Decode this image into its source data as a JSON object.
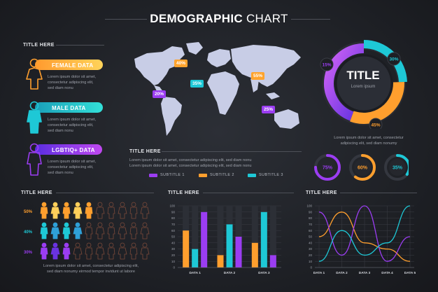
{
  "header": {
    "title_bold": "DEMOGRAPHIC",
    "title_light": " CHART"
  },
  "colors": {
    "orange": "#ff9f2e",
    "teal": "#1ec8d6",
    "purple": "#9b3df2",
    "background": "#1f2126"
  },
  "people_panel": {
    "title": "TITLE HERE",
    "rows": [
      {
        "label": "FEMALE DATA",
        "text": [
          "Lorem ipsum dolor sit amet,",
          "consectetur adipiscing elit,",
          "sed diam nonu"
        ],
        "icon": "female-person-icon"
      },
      {
        "label": "MALE DATA",
        "text": [
          "Lorem ipsum dolor sit amet,",
          "consectetur adipiscing elit,",
          "sed diam nonu"
        ],
        "icon": "male-person-icon"
      },
      {
        "label": "LGBTIQ+ DATA",
        "text": [
          "Lorem ipsum dolor sit amet,",
          "consectetur adipiscing elit,",
          "sed diam nonu"
        ],
        "icon": "person-icon"
      }
    ]
  },
  "map": {
    "badges": [
      "40%",
      "55%",
      "20%",
      "35%",
      "25%"
    ],
    "title": "TITLE HERE",
    "text": [
      "Lorem ipsum dolor sit amet, consectetur adipiscing elit, sed diam nonu",
      "Lorem ipsum dolor sit amet, consectetur adipiscing elit, sed diam nonu"
    ],
    "legend": [
      "SUBTITLE 1",
      "SUBTITLE 2",
      "SUBTITLE 3"
    ]
  },
  "donut": {
    "title": "TITLE",
    "subtitle": "Lorem ipsum",
    "labels": [
      "15%",
      "30%",
      "45%"
    ],
    "text": [
      "Lorem ipsum dolor sit amet, consectetur",
      "adipiscing elit, sed diam nonumy"
    ],
    "rings": [
      "75%",
      "60%",
      "35%"
    ]
  },
  "pictogram": {
    "title": "TITLE HERE",
    "rows": [
      "50%",
      "40%",
      "30%"
    ],
    "text": [
      "Lorem ipsum dolor sit amet, consectetur adipiscing elit,",
      "sed diam nonumy eirmod tempor invidunt ut labore"
    ]
  },
  "bar_title": "TITLE HERE",
  "line_title": "TITLE HERE",
  "chart_data": [
    {
      "type": "pie",
      "values": [
        15,
        30,
        45
      ],
      "labels": [
        "15%",
        "30%",
        "45%"
      ],
      "title": "TITLE"
    },
    {
      "type": "pie",
      "labels": [
        "75%",
        "60%",
        "35%"
      ],
      "values": [
        75,
        60,
        35
      ],
      "colors": [
        "#9b3df2",
        "#ff9f2e",
        "#1ec8d6"
      ]
    },
    {
      "type": "bar",
      "title": "TITLE HERE",
      "categories": [
        "DATA 1",
        "DATA 2",
        "DATA 3"
      ],
      "ylim": [
        0,
        100
      ],
      "yticks": [
        0,
        10,
        20,
        30,
        40,
        50,
        60,
        70,
        80,
        90,
        100
      ],
      "series": [
        {
          "color": "#ff9f2e",
          "values": [
            60,
            20,
            40
          ]
        },
        {
          "color": "#1ec8d6",
          "values": [
            30,
            70,
            90
          ]
        },
        {
          "color": "#9b3df2",
          "values": [
            90,
            50,
            20
          ]
        }
      ]
    },
    {
      "type": "line",
      "title": "TITLE HERE",
      "x": [
        "DATA 1",
        "DATA 2",
        "DATA 3",
        "DATA 4",
        "DATA 5"
      ],
      "ylim": [
        0,
        100
      ],
      "yticks": [
        0,
        10,
        20,
        30,
        40,
        50,
        60,
        70,
        80,
        90,
        100
      ],
      "series": [
        {
          "color": "#ff9f2e",
          "values": [
            50,
            90,
            40,
            30,
            10
          ]
        },
        {
          "color": "#9b3df2",
          "values": [
            90,
            20,
            100,
            10,
            50
          ]
        },
        {
          "color": "#1ec8d6",
          "values": [
            10,
            60,
            20,
            40,
            100
          ]
        }
      ]
    }
  ]
}
